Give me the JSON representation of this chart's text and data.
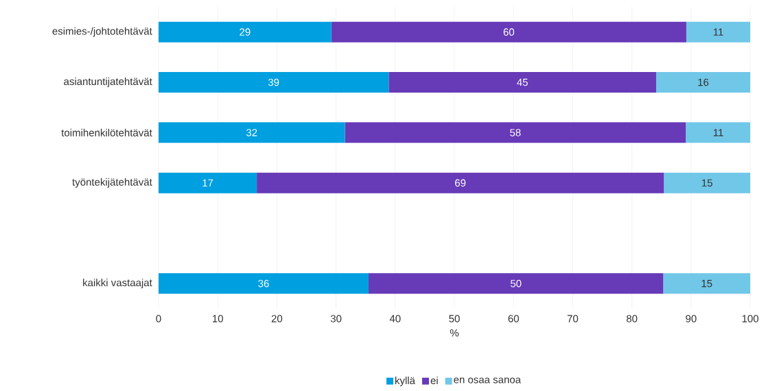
{
  "chart_data": {
    "type": "bar",
    "orientation": "horizontal",
    "stacked": true,
    "xlabel": "%",
    "categories": [
      "esimies-/johtotehtävät",
      "asiantuntijatehtävät",
      "toimihenkilötehtävät",
      "työntekijätehtävät",
      null,
      "kaikki vastaajat"
    ],
    "series": [
      {
        "name": "kyllä",
        "color": "#009fdf",
        "values": [
          29.2,
          38.9,
          31.5,
          16.6,
          null,
          35.5
        ],
        "value_labels": [
          "29",
          "39",
          "32",
          "17",
          null,
          "36"
        ]
      },
      {
        "name": "ei",
        "color": "#673ab7",
        "values": [
          60.0,
          45.2,
          57.6,
          68.8,
          null,
          49.8
        ],
        "value_labels": [
          "60",
          "45",
          "58",
          "69",
          null,
          "50"
        ]
      },
      {
        "name": "en osaa sanoa",
        "color": "#71c7e8",
        "values": [
          10.8,
          15.9,
          11.0,
          14.6,
          null,
          14.7
        ],
        "value_labels": [
          "11",
          "16",
          "11",
          "15",
          null,
          "15"
        ]
      }
    ],
    "xlim": [
      0,
      100
    ],
    "xticks": [
      0,
      10,
      20,
      30,
      40,
      50,
      60,
      70,
      80,
      90,
      100
    ],
    "grid": "x",
    "legend": "bottom"
  }
}
